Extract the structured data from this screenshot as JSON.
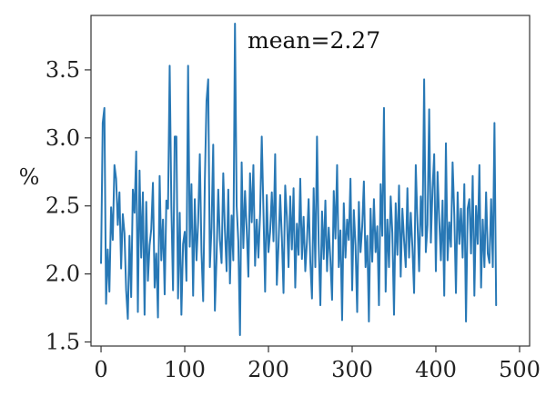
{
  "chart_data": {
    "type": "line",
    "ylabel": "%",
    "xlabel": "",
    "title": "",
    "annotation": "mean=2.27",
    "xlim": [
      -12,
      512
    ],
    "ylim": [
      1.47,
      3.9
    ],
    "x_ticks": [
      0,
      100,
      200,
      300,
      400,
      500
    ],
    "y_ticks": [
      1.5,
      2.0,
      2.5,
      3.0,
      3.5
    ],
    "x_tick_labels": [
      "0",
      "100",
      "200",
      "300",
      "400",
      "500"
    ],
    "y_tick_labels": [
      "1.5",
      "2.0",
      "2.5",
      "3.0",
      "3.5"
    ],
    "grid": false,
    "series_color": "#2878b5",
    "series": [
      {
        "x_start": 0,
        "x_step": 2,
        "values": [
          2.08,
          3.11,
          3.22,
          1.78,
          2.18,
          1.87,
          2.49,
          2.25,
          2.8,
          2.7,
          2.36,
          2.6,
          2.04,
          2.44,
          2.3,
          1.88,
          1.67,
          2.28,
          1.83,
          2.62,
          2.45,
          2.9,
          1.72,
          2.76,
          2.12,
          2.6,
          1.7,
          2.53,
          1.95,
          2.21,
          2.33,
          2.67,
          1.9,
          2.15,
          1.68,
          2.72,
          2.1,
          2.4,
          1.85,
          2.54,
          2.48,
          3.53,
          2.5,
          1.88,
          3.01,
          3.01,
          1.82,
          2.45,
          1.7,
          2.22,
          2.31,
          1.95,
          3.53,
          2.2,
          2.66,
          1.84,
          2.55,
          2.1,
          2.38,
          2.88,
          2.16,
          1.8,
          2.68,
          3.27,
          3.43,
          2.05,
          2.34,
          2.95,
          1.73,
          2.12,
          2.62,
          2.25,
          2.08,
          2.74,
          2.32,
          2.02,
          2.62,
          1.93,
          2.43,
          2.1,
          3.84,
          2.5,
          2.24,
          1.55,
          2.82,
          2.19,
          2.61,
          2.33,
          1.98,
          2.74,
          2.38,
          2.8,
          2.06,
          2.4,
          2.12,
          2.44,
          3.01,
          2.47,
          1.87,
          2.58,
          2.16,
          2.31,
          2.6,
          2.24,
          2.88,
          1.92,
          2.21,
          2.58,
          2.27,
          1.86,
          2.65,
          2.42,
          2.05,
          2.57,
          2.18,
          2.63,
          1.9,
          2.37,
          2.14,
          2.7,
          2.11,
          2.42,
          2.02,
          2.24,
          2.55,
          2.09,
          1.82,
          2.63,
          2.05,
          3.01,
          2.22,
          1.77,
          2.46,
          2.11,
          2.54,
          2.02,
          2.34,
          2.1,
          1.81,
          2.61,
          2.26,
          2.8,
          2.05,
          2.32,
          1.66,
          2.52,
          2.12,
          2.4,
          2.25,
          2.7,
          1.88,
          2.47,
          2.21,
          1.72,
          2.53,
          2.16,
          2.35,
          2.68,
          2.05,
          2.28,
          1.65,
          2.48,
          2.09,
          2.55,
          2.16,
          2.35,
          1.77,
          2.66,
          2.28,
          3.22,
          1.87,
          2.4,
          2.05,
          2.57,
          2.3,
          1.7,
          2.52,
          2.14,
          2.65,
          1.98,
          2.48,
          2.25,
          2.05,
          2.63,
          2.12,
          2.45,
          2.19,
          1.86,
          2.8,
          2.38,
          2.02,
          2.57,
          2.28,
          3.43,
          2.16,
          2.36,
          3.21,
          2.23,
          2.62,
          2.88,
          2.02,
          2.75,
          2.4,
          2.1,
          2.54,
          1.84,
          2.96,
          2.1,
          2.38,
          2.2,
          2.82,
          2.44,
          1.86,
          2.6,
          2.22,
          2.48,
          2.12,
          2.66,
          1.65,
          2.48,
          2.55,
          2.15,
          2.72,
          1.84,
          2.5,
          2.22,
          2.8,
          1.9,
          2.4,
          2.05,
          2.6,
          2.15,
          2.08,
          2.55,
          2.05,
          3.11,
          1.77
        ]
      }
    ]
  }
}
